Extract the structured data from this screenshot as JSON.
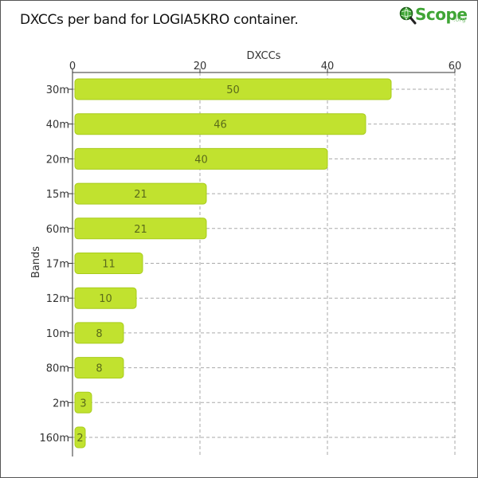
{
  "title": "DXCCs per band for LOGIA5KRO container.",
  "logo": {
    "word": "Scope",
    "suffix": ".org",
    "icon": "magnifier-globe-icon"
  },
  "colors": {
    "bar_fill": "#c1e22f",
    "bar_stroke": "#a8cc1c",
    "bar_label": "#5a6b1a",
    "grid": "#aaaaaa",
    "axis": "#333333",
    "logo_green": "#3fa535"
  },
  "chart_data": {
    "type": "bar",
    "orientation": "horizontal",
    "title": "DXCCs per band for LOGIA5KRO container.",
    "xlabel": "DXCCs",
    "ylabel": "Bands",
    "xlim": [
      0,
      60
    ],
    "xticks": [
      0,
      20,
      40,
      60
    ],
    "x_axis_position": "top",
    "grid": true,
    "categories": [
      "30m",
      "40m",
      "20m",
      "15m",
      "60m",
      "17m",
      "12m",
      "10m",
      "80m",
      "2m",
      "160m"
    ],
    "values": [
      50,
      46,
      40,
      21,
      21,
      11,
      10,
      8,
      8,
      3,
      2
    ]
  }
}
